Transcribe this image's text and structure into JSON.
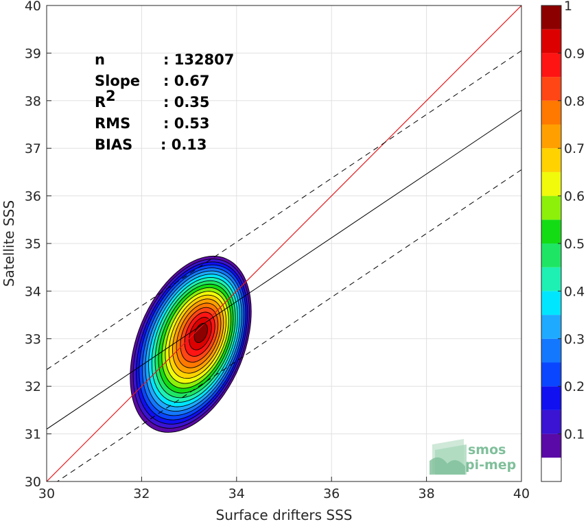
{
  "chart_data": {
    "type": "contour",
    "xlabel": "Surface drifters SSS",
    "ylabel": "Satellite SSS",
    "xlim": [
      30,
      40
    ],
    "ylim": [
      30,
      40
    ],
    "x_ticks": [
      "30",
      "32",
      "34",
      "36",
      "38",
      "40"
    ],
    "y_ticks": [
      "30",
      "31",
      "32",
      "33",
      "34",
      "35",
      "36",
      "37",
      "38",
      "39",
      "40"
    ],
    "grid": true,
    "stats": [
      {
        "label": "n",
        "value": ": 132807"
      },
      {
        "label": "Slope",
        "value": ": 0.67"
      },
      {
        "label": "R",
        "sup": "2",
        "value": ": 0.35"
      },
      {
        "label": "RMS",
        "value": ": 0.53"
      },
      {
        "label": "BIAS",
        "value": ": 0.13"
      }
    ],
    "lines": {
      "identity": {
        "slope": 1,
        "intercept": 0,
        "color": "#e41a1c"
      },
      "regression": {
        "slope": 0.67,
        "x0": 30,
        "y0": 31.1,
        "color": "#000000"
      },
      "bounds": [
        {
          "slope": 0.67,
          "x0": 30,
          "y0": 32.35,
          "style": "dashed"
        },
        {
          "slope": 0.67,
          "x0": 30,
          "y0": 29.85,
          "style": "dashed"
        }
      ]
    },
    "density_peak": {
      "x": 33.15,
      "y": 33.2
    },
    "colorbar": {
      "ticks": [
        "0.1",
        "0.2",
        "0.3",
        "0.4",
        "0.5",
        "0.6",
        "0.7",
        "0.8",
        "0.9",
        "1"
      ],
      "levels": [
        {
          "from": 0.0,
          "to": 0.05,
          "color": "#ffffff"
        },
        {
          "from": 0.05,
          "to": 0.1,
          "color": "#5a0aa6"
        },
        {
          "from": 0.1,
          "to": 0.15,
          "color": "#3a14d2"
        },
        {
          "from": 0.15,
          "to": 0.2,
          "color": "#1010f0"
        },
        {
          "from": 0.2,
          "to": 0.25,
          "color": "#0a46ff"
        },
        {
          "from": 0.25,
          "to": 0.3,
          "color": "#1478ff"
        },
        {
          "from": 0.3,
          "to": 0.35,
          "color": "#1eaaff"
        },
        {
          "from": 0.35,
          "to": 0.4,
          "color": "#00e6ff"
        },
        {
          "from": 0.4,
          "to": 0.45,
          "color": "#1ef0b4"
        },
        {
          "from": 0.45,
          "to": 0.5,
          "color": "#1ee664"
        },
        {
          "from": 0.5,
          "to": 0.55,
          "color": "#14dc14"
        },
        {
          "from": 0.55,
          "to": 0.6,
          "color": "#8cf00a"
        },
        {
          "from": 0.6,
          "to": 0.65,
          "color": "#f0fa0a"
        },
        {
          "from": 0.65,
          "to": 0.7,
          "color": "#ffd200"
        },
        {
          "from": 0.7,
          "to": 0.75,
          "color": "#ffa000"
        },
        {
          "from": 0.75,
          "to": 0.8,
          "color": "#ff7800"
        },
        {
          "from": 0.8,
          "to": 0.85,
          "color": "#ff4614"
        },
        {
          "from": 0.85,
          "to": 0.9,
          "color": "#ff1414"
        },
        {
          "from": 0.9,
          "to": 0.95,
          "color": "#dc0000"
        },
        {
          "from": 0.95,
          "to": 1.0,
          "color": "#8c0000"
        }
      ]
    },
    "logo": {
      "line1": "smos",
      "line2": "pi-mep"
    }
  }
}
